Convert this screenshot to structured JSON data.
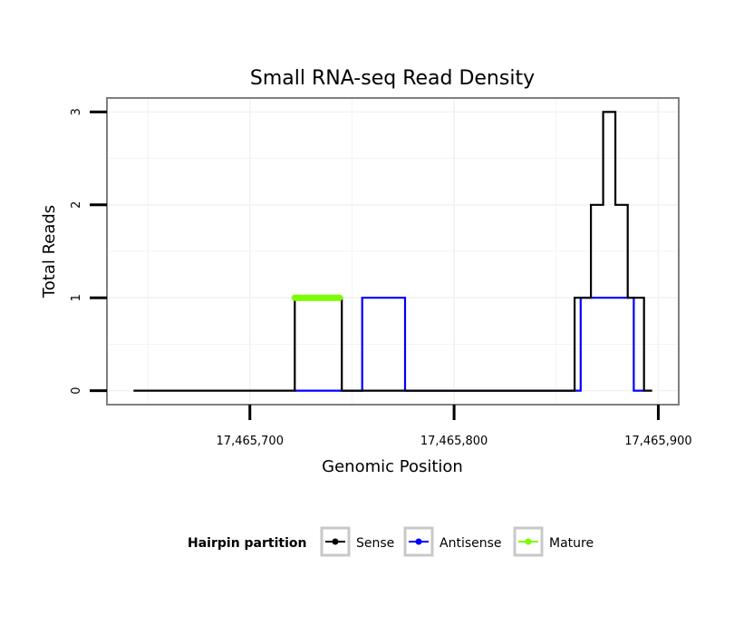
{
  "chart_data": {
    "type": "line",
    "title": "Small RNA-seq Read Density",
    "xlabel": "Genomic Position",
    "ylabel": "Total Reads",
    "xlim": [
      17465630,
      17465910
    ],
    "ylim": [
      -0.15,
      3.15
    ],
    "x_ticks": [
      {
        "value": 17465700,
        "label": "17,465,700"
      },
      {
        "value": 17465800,
        "label": "17,465,800"
      },
      {
        "value": 17465900,
        "label": "17,465,900"
      }
    ],
    "y_ticks": [
      {
        "value": 0,
        "label": "0"
      },
      {
        "value": 1,
        "label": "1"
      },
      {
        "value": 2,
        "label": "2"
      },
      {
        "value": 3,
        "label": "3"
      }
    ],
    "grid": true,
    "legend": {
      "title": "Hairpin partition",
      "position": "bottom"
    },
    "series": [
      {
        "name": "Sense",
        "color": "#000000",
        "style": "step",
        "points": [
          [
            17465643,
            0
          ],
          [
            17465722,
            0
          ],
          [
            17465722,
            1
          ],
          [
            17465745,
            1
          ],
          [
            17465745,
            0
          ],
          [
            17465859,
            0
          ],
          [
            17465859,
            1
          ],
          [
            17465867,
            1
          ],
          [
            17465867,
            2
          ],
          [
            17465873,
            2
          ],
          [
            17465873,
            3
          ],
          [
            17465879,
            3
          ],
          [
            17465879,
            2
          ],
          [
            17465885,
            2
          ],
          [
            17465885,
            1
          ],
          [
            17465893,
            1
          ],
          [
            17465893,
            0
          ],
          [
            17465897,
            0
          ]
        ]
      },
      {
        "name": "Antisense",
        "color": "#0000ff",
        "style": "step",
        "points": [
          [
            17465722,
            0
          ],
          [
            17465755,
            0
          ],
          [
            17465755,
            1
          ],
          [
            17465776,
            1
          ],
          [
            17465776,
            0
          ],
          [
            17465862,
            0
          ],
          [
            17465862,
            1
          ],
          [
            17465888,
            1
          ],
          [
            17465888,
            0
          ],
          [
            17465893,
            0
          ]
        ]
      },
      {
        "name": "Mature",
        "color": "#7cfc00",
        "style": "segment",
        "points": [
          [
            17465722,
            1
          ],
          [
            17465744,
            1
          ]
        ]
      }
    ]
  }
}
